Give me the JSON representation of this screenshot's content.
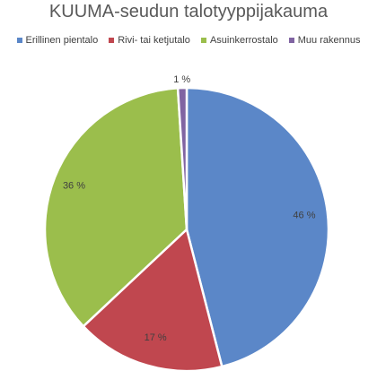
{
  "chart_data": {
    "type": "pie",
    "title": "KUUMA-seudun talotyyppijakauma",
    "legend_position": "top",
    "categories": [
      "Erillinen pientalo",
      "Rivi- tai ketjutalo",
      "Asuinkerrostalo",
      "Muu rakennus"
    ],
    "values": [
      46,
      17,
      36,
      1
    ],
    "labels": [
      "46 %",
      "17 %",
      "36 %",
      "1 %"
    ],
    "colors": [
      "#5b87c8",
      "#c0474f",
      "#9bbe4c",
      "#8064a2"
    ]
  }
}
